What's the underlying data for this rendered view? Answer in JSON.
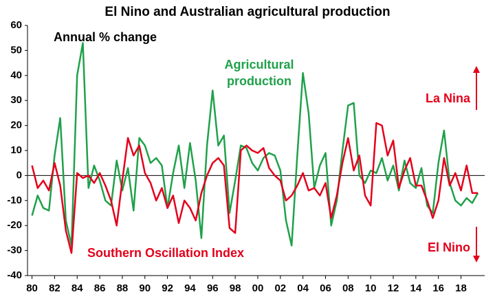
{
  "chart_data": {
    "type": "line",
    "title": "El Nino and Australian agricultural production",
    "annotations": [
      {
        "text": "Annual % change",
        "color": "#000000"
      },
      {
        "text": "Agricultural production",
        "color": "#1fa14a"
      },
      {
        "text": "La Nina",
        "color": "#e3001b"
      },
      {
        "text": "El Nino",
        "color": "#e3001b"
      },
      {
        "text": "Southern Oscillation Index",
        "color": "#e3001b"
      }
    ],
    "x": [
      1980,
      1980.5,
      1981,
      1981.5,
      1982,
      1982.5,
      1983,
      1983.5,
      1984,
      1984.5,
      1985,
      1985.5,
      1986,
      1986.5,
      1987,
      1987.5,
      1988,
      1988.5,
      1989,
      1989.5,
      1990,
      1990.5,
      1991,
      1991.5,
      1992,
      1992.5,
      1993,
      1993.5,
      1994,
      1994.5,
      1995,
      1995.5,
      1996,
      1996.5,
      1997,
      1997.5,
      1998,
      1998.5,
      1999,
      1999.5,
      2000,
      2000.5,
      2001,
      2001.5,
      2002,
      2002.5,
      2003,
      2003.5,
      2004,
      2004.5,
      2005,
      2005.5,
      2006,
      2006.5,
      2007,
      2007.5,
      2008,
      2008.5,
      2009,
      2009.5,
      2010,
      2010.5,
      2011,
      2011.5,
      2012,
      2012.5,
      2013,
      2013.5,
      2014,
      2014.5,
      2015,
      2015.5,
      2016,
      2016.5,
      2017,
      2017.5,
      2018,
      2018.5,
      2019,
      2019.5
    ],
    "series": [
      {
        "name": "Agricultural production",
        "color": "#1fa14a",
        "values": [
          -16,
          -8,
          -13,
          -14,
          8,
          23,
          -18,
          -28,
          40,
          53,
          -5,
          4,
          -2,
          -10,
          -12,
          6,
          -6,
          3,
          -14,
          15,
          12,
          5,
          7,
          4,
          -13,
          1,
          12,
          -5,
          13,
          -2,
          -25,
          12,
          34,
          12,
          16,
          -15,
          -2,
          12,
          11,
          5,
          2,
          7,
          9,
          8,
          2,
          -18,
          -28,
          8,
          41,
          25,
          -5,
          4,
          9,
          -20,
          -10,
          10,
          28,
          29,
          0,
          -3,
          2,
          1,
          7,
          -2,
          4,
          -6,
          6,
          -3,
          -5,
          3,
          -12,
          -15,
          5,
          18,
          -3,
          -10,
          -12,
          -9,
          -11,
          -7
        ]
      },
      {
        "name": "Southern Oscillation Index",
        "color": "#e3001b",
        "values": [
          4,
          -5,
          -2,
          -6,
          5,
          -4,
          -22,
          -31,
          1,
          -1,
          0,
          -3,
          1,
          -4,
          -10,
          -20,
          -2,
          15,
          8,
          12,
          1,
          -3,
          -10,
          -5,
          -13,
          -8,
          -19,
          -10,
          -13,
          -18,
          -7,
          0,
          5,
          7,
          4,
          -21,
          -23,
          10,
          12,
          10,
          9,
          11,
          3,
          0,
          -2,
          -10,
          -8,
          -4,
          1,
          -6,
          -5,
          -8,
          -3,
          -17,
          -8,
          5,
          15,
          2,
          8,
          -8,
          -12,
          21,
          20,
          8,
          14,
          -5,
          2,
          7,
          -4,
          -4,
          -10,
          -17,
          -10,
          7,
          -4,
          1,
          -6,
          4,
          -7,
          -7
        ]
      }
    ],
    "xlim": [
      1979.6,
      2020.1
    ],
    "xticks": [
      {
        "value": 1980,
        "label": "80"
      },
      {
        "value": 1982,
        "label": "82"
      },
      {
        "value": 1984,
        "label": "84"
      },
      {
        "value": 1986,
        "label": "86"
      },
      {
        "value": 1988,
        "label": "88"
      },
      {
        "value": 1990,
        "label": "90"
      },
      {
        "value": 1992,
        "label": "92"
      },
      {
        "value": 1994,
        "label": "94"
      },
      {
        "value": 1996,
        "label": "96"
      },
      {
        "value": 1998,
        "label": "98"
      },
      {
        "value": 2000,
        "label": "00"
      },
      {
        "value": 2002,
        "label": "02"
      },
      {
        "value": 2004,
        "label": "04"
      },
      {
        "value": 2006,
        "label": "06"
      },
      {
        "value": 2008,
        "label": "08"
      },
      {
        "value": 2010,
        "label": "10"
      },
      {
        "value": 2012,
        "label": "12"
      },
      {
        "value": 2014,
        "label": "14"
      },
      {
        "value": 2016,
        "label": "16"
      },
      {
        "value": 2018,
        "label": "18"
      }
    ],
    "ylim": [
      -40,
      60
    ],
    "yticks": [
      -40,
      -30,
      -20,
      -10,
      0,
      10,
      20,
      30,
      40,
      50,
      60
    ],
    "grid": false
  }
}
